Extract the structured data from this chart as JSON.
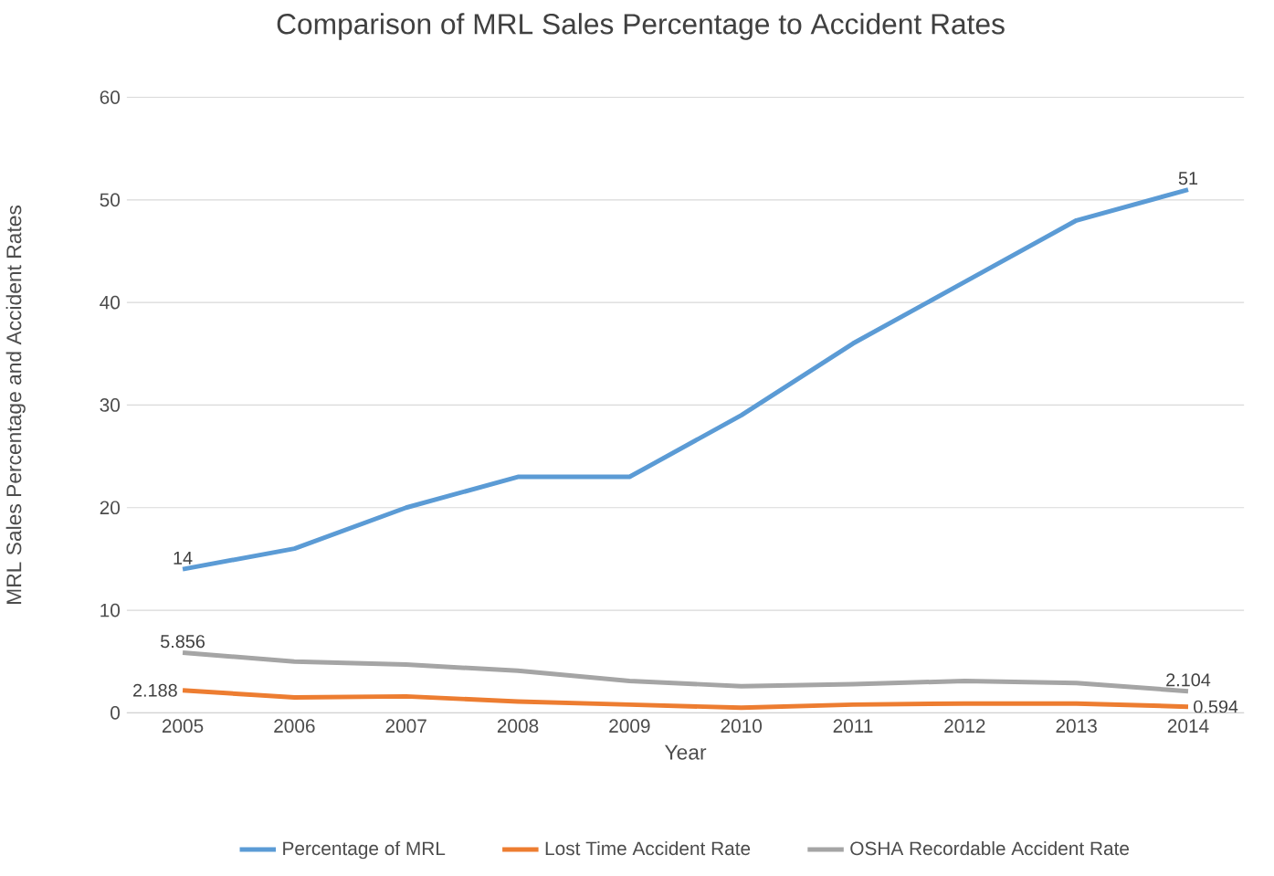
{
  "chart_data": {
    "type": "line",
    "title": "Comparison of MRL Sales Percentage to Accident Rates",
    "xlabel": "Year",
    "ylabel": "MRL Sales Percentage and Accident Rates",
    "categories": [
      "2005",
      "2006",
      "2007",
      "2008",
      "2009",
      "2010",
      "2011",
      "2012",
      "2013",
      "2014"
    ],
    "series": [
      {
        "name": "Percentage of MRL",
        "color": "#5b9bd5",
        "values": [
          14,
          16,
          20,
          23,
          23,
          29,
          36,
          42,
          48,
          51
        ],
        "value_labels": [
          "14",
          null,
          null,
          null,
          null,
          null,
          null,
          null,
          null,
          "51"
        ]
      },
      {
        "name": "Lost Time Accident Rate",
        "color": "#ed7d31",
        "values": [
          2.188,
          1.5,
          1.6,
          1.1,
          0.8,
          0.5,
          0.8,
          0.9,
          0.9,
          0.594
        ],
        "value_labels": [
          "2.188",
          null,
          null,
          null,
          null,
          null,
          null,
          null,
          null,
          "0.594"
        ]
      },
      {
        "name": "OSHA Recordable Accident Rate",
        "color": "#a5a5a5",
        "values": [
          5.856,
          5.0,
          4.7,
          4.1,
          3.1,
          2.6,
          2.8,
          3.1,
          2.9,
          2.104
        ],
        "value_labels": [
          "5.856",
          null,
          null,
          null,
          null,
          null,
          null,
          null,
          null,
          "2.104"
        ]
      }
    ],
    "ylim": [
      0,
      60
    ],
    "yticks": [
      0,
      10,
      20,
      30,
      40,
      50,
      60
    ],
    "grid": "y",
    "legend": "bottom",
    "marker": "none",
    "line_style": "solid"
  }
}
